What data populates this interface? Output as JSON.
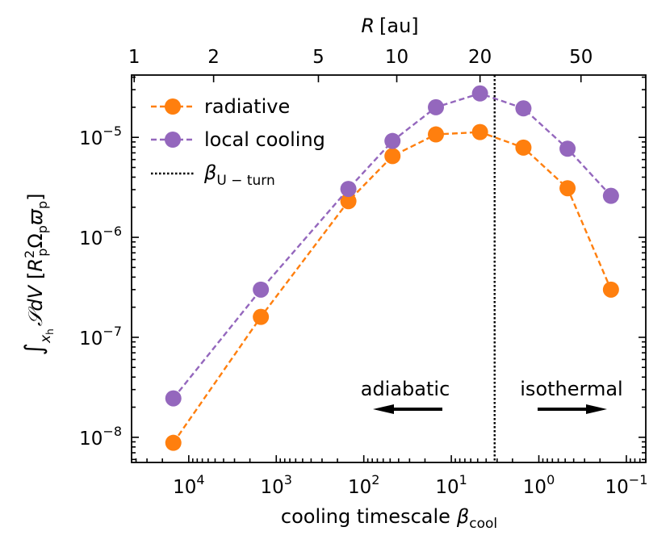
{
  "chart_data": {
    "type": "line",
    "title": "",
    "xlabel": "cooling timescale",
    "xlabel_symbol": "β",
    "xlabel_sub": "cool",
    "ylabel": "∫ 𝒮 dV [R²Ω ϖ]",
    "ylabel_parts": {
      "integral": "∫",
      "domain_x": "x",
      "domain_sub": "h",
      "var": "𝒮dV",
      "unit_open": "[",
      "R": "R",
      "R_sup": "2",
      "p1": "p",
      "Omega": "Ω",
      "p2": "p",
      "varpi": "ϖ",
      "p3": "p",
      "unit_close": "]"
    },
    "top_xlabel": "R [au]",
    "top_xlabel_parts": {
      "var": "R",
      "unit": "[au]"
    },
    "xscale": "log",
    "yscale": "log",
    "x_inverted": true,
    "xlim": [
      45000,
      0.06
    ],
    "ylim": [
      5.6e-09,
      4.2e-05
    ],
    "xticks": [
      {
        "value": 10000,
        "base": "10",
        "exp": "4"
      },
      {
        "value": 1000,
        "base": "10",
        "exp": "3"
      },
      {
        "value": 100,
        "base": "10",
        "exp": "2"
      },
      {
        "value": 10,
        "base": "10",
        "exp": "1"
      },
      {
        "value": 1,
        "base": "10",
        "exp": "0"
      },
      {
        "value": 0.1,
        "base": "10",
        "exp": "−1"
      }
    ],
    "yticks": [
      {
        "value": 1e-08,
        "base": "10",
        "exp": "−8"
      },
      {
        "value": 1e-07,
        "base": "10",
        "exp": "−7"
      },
      {
        "value": 1e-06,
        "base": "10",
        "exp": "−6"
      },
      {
        "value": 1e-05,
        "base": "10",
        "exp": "−5"
      }
    ],
    "top_ticks": [
      {
        "label": "1",
        "beta": 42000
      },
      {
        "label": "2",
        "beta": 5200
      },
      {
        "label": "5",
        "beta": 330
      },
      {
        "label": "10",
        "beta": 42
      },
      {
        "label": "20",
        "beta": 4.7
      },
      {
        "label": "50",
        "beta": 0.33
      }
    ],
    "series": [
      {
        "name": "radiative",
        "color": "#ff7f0e",
        "x": [
          15000,
          1500,
          150,
          47,
          15,
          4.7,
          1.5,
          0.47,
          0.15
        ],
        "y": [
          8.8e-09,
          1.6e-07,
          2.3e-06,
          6.5e-06,
          1.07e-05,
          1.13e-05,
          7.9e-06,
          3.1e-06,
          3e-07
        ]
      },
      {
        "name": "local cooling",
        "color": "#9467bd",
        "x": [
          15000,
          1500,
          150,
          47,
          15,
          4.7,
          1.5,
          0.47,
          0.15
        ],
        "y": [
          2.45e-08,
          3e-07,
          3.05e-06,
          9.2e-06,
          2e-05,
          2.75e-05,
          1.95e-05,
          7.7e-06,
          2.6e-06
        ]
      }
    ],
    "vline": {
      "label": "β",
      "label_sub": "U − turn",
      "x": 3.2,
      "color": "#000000"
    },
    "annotations": [
      {
        "text": "adiabatic",
        "arrow": "left"
      },
      {
        "text": "isothermal",
        "arrow": "right"
      }
    ],
    "legend_position": "upper-left",
    "grid": false
  }
}
